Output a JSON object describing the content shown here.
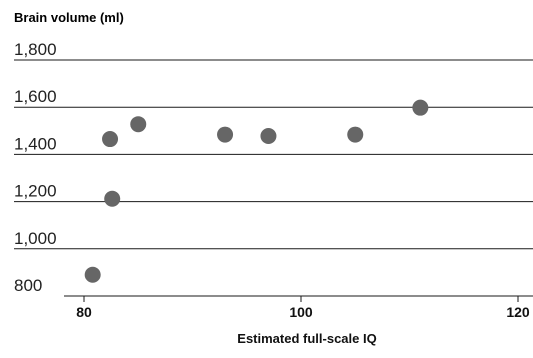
{
  "chart_data": {
    "type": "scatter",
    "ylabel": "Brain volume (ml)",
    "xlabel": "Estimated full-scale IQ",
    "xlim": [
      76,
      121
    ],
    "ylim": [
      770,
      1820
    ],
    "yticks": [
      800,
      1000,
      1200,
      1400,
      1600,
      1800
    ],
    "ytick_labels": [
      "800",
      "1,000",
      "1,200",
      "1,400",
      "1,600",
      "1,800"
    ],
    "xticks": [
      80,
      100,
      120
    ],
    "xtick_labels": [
      "80",
      "100",
      "120"
    ],
    "grid": "horizontal",
    "point_color": "#666666",
    "points": [
      {
        "x": 80.8,
        "y": 890
      },
      {
        "x": 82.4,
        "y": 1465
      },
      {
        "x": 82.6,
        "y": 1212
      },
      {
        "x": 85.0,
        "y": 1528
      },
      {
        "x": 93.0,
        "y": 1484
      },
      {
        "x": 97.0,
        "y": 1478
      },
      {
        "x": 105.0,
        "y": 1484
      },
      {
        "x": 111.0,
        "y": 1598
      }
    ]
  }
}
